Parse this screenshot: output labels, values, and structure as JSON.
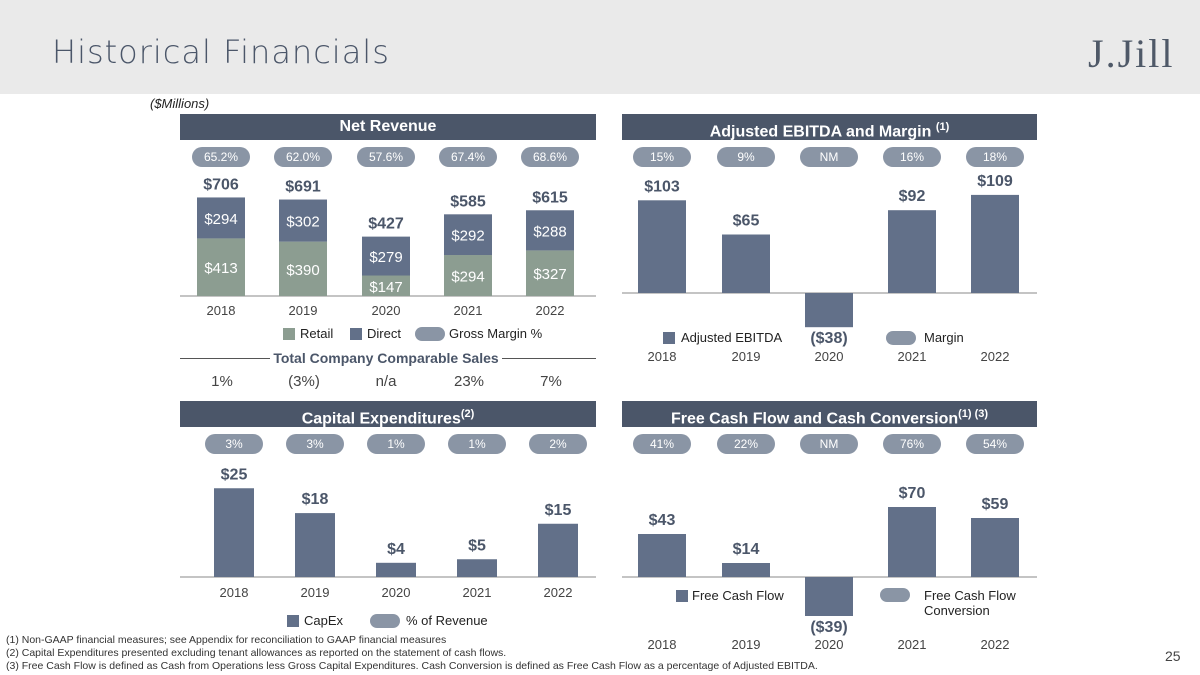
{
  "page": {
    "title": "Historical Financials",
    "logo": "J.Jill",
    "units": "($Millions)",
    "page_number": "25"
  },
  "panels": {
    "net_revenue_title": "Net Revenue",
    "ebitda_title": "Adjusted EBITDA and Margin",
    "ebitda_note": "(1)",
    "capex_title": "Capital Expenditures",
    "capex_note": "(2)",
    "fcf_title": "Free Cash Flow and Cash Conversion",
    "fcf_note": "(1) (3)"
  },
  "comparable_sales": {
    "title": "Total Company Comparable Sales",
    "values": [
      "1%",
      "(3%)",
      "n/a",
      "23%",
      "7%"
    ]
  },
  "colors": {
    "navy": "#4b5669",
    "bar": "#627089",
    "retail": "#8c9d91",
    "pill": "#8a95a5"
  },
  "chart_data": [
    {
      "type": "bar",
      "stacked": true,
      "title": "Net Revenue",
      "categories": [
        "2018",
        "2019",
        "2020",
        "2021",
        "2022"
      ],
      "series": [
        {
          "name": "Retail",
          "values": [
            413,
            390,
            147,
            294,
            327
          ],
          "labels": [
            "$413",
            "$390",
            "$147",
            "$294",
            "$327"
          ]
        },
        {
          "name": "Direct",
          "values": [
            294,
            302,
            279,
            292,
            288
          ],
          "labels": [
            "$294",
            "$302",
            "$279",
            "$292",
            "$288"
          ]
        }
      ],
      "totals": [
        "$706",
        "$691",
        "$427",
        "$585",
        "$615"
      ],
      "total_values": [
        706,
        691,
        427,
        585,
        615
      ],
      "rate_name": "Gross Margin %",
      "rates": [
        "65.2%",
        "62.0%",
        "57.6%",
        "67.4%",
        "68.6%"
      ],
      "legend": [
        "Retail",
        "Direct",
        "Gross Margin %"
      ]
    },
    {
      "type": "bar",
      "title": "Adjusted EBITDA and Margin",
      "categories": [
        "2018",
        "2019",
        "2020",
        "2021",
        "2022"
      ],
      "series": [
        {
          "name": "Adjusted EBITDA",
          "values": [
            103,
            65,
            -38,
            92,
            109
          ]
        }
      ],
      "labels": [
        "$103",
        "$65",
        "($38)",
        "$92",
        "$109"
      ],
      "rate_name": "Margin",
      "rates": [
        "15%",
        "9%",
        "NM",
        "16%",
        "18%"
      ],
      "legend": [
        "Adjusted EBITDA",
        "Margin"
      ]
    },
    {
      "type": "bar",
      "title": "Capital Expenditures",
      "categories": [
        "2018",
        "2019",
        "2020",
        "2021",
        "2022"
      ],
      "series": [
        {
          "name": "CapEx",
          "values": [
            25,
            18,
            4,
            5,
            15
          ]
        }
      ],
      "labels": [
        "$25",
        "$18",
        "$4",
        "$5",
        "$15"
      ],
      "rate_name": "% of Revenue",
      "rates": [
        "3%",
        "3%",
        "1%",
        "1%",
        "2%"
      ],
      "legend": [
        "CapEx",
        "% of Revenue"
      ]
    },
    {
      "type": "bar",
      "title": "Free Cash Flow and Cash Conversion",
      "categories": [
        "2018",
        "2019",
        "2020",
        "2021",
        "2022"
      ],
      "series": [
        {
          "name": "Free Cash Flow",
          "values": [
            43,
            14,
            -39,
            70,
            59
          ]
        }
      ],
      "labels": [
        "$43",
        "$14",
        "($39)",
        "$70",
        "$59"
      ],
      "rate_name": "Free Cash Flow Conversion",
      "rates": [
        "41%",
        "22%",
        "NM",
        "76%",
        "54%"
      ],
      "legend": [
        "Free Cash Flow",
        "Free Cash Flow",
        "Conversion"
      ]
    }
  ],
  "footnotes": [
    "(1)   Non-GAAP financial measures; see Appendix for reconciliation to GAAP financial measures",
    "(2)   Capital Expenditures presented excluding tenant allowances as reported on the statement of cash flows.",
    "(3)   Free Cash Flow is defined as Cash from Operations less Gross Capital Expenditures. Cash Conversion is defined as Free Cash Flow as a percentage of Adjusted EBITDA."
  ]
}
